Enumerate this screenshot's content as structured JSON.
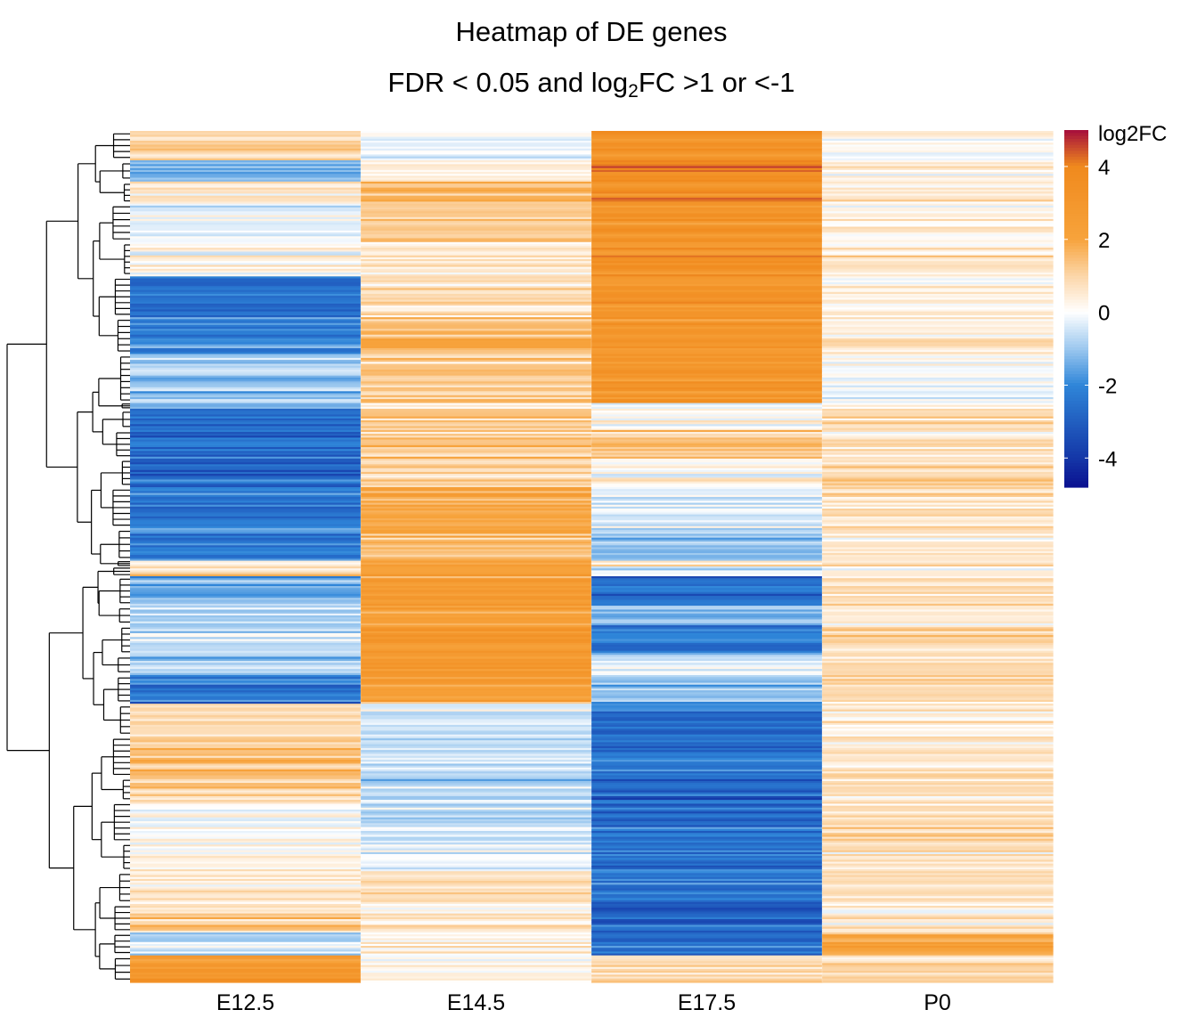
{
  "title_line1": "Heatmap of DE genes",
  "title_line2": {
    "pre": "FDR < 0.05 and log",
    "sub": "2",
    "post": "FC >1 or <-1"
  },
  "chart_data": {
    "type": "heatmap",
    "columns": [
      "E12.5",
      "E14.5",
      "E17.5",
      "P0"
    ],
    "row_dendrogram": true,
    "legend": {
      "title": "log2FC",
      "ticks": [
        4,
        2,
        0,
        -2,
        -4
      ],
      "range": [
        -4.8,
        5
      ],
      "colors": {
        "-4.8": "#0a1190",
        "-4": "#1437a8",
        "-2": "#2f86d9",
        "-1": "#9cc8ef",
        "0": "#ffffff",
        "1": "#fcd6a8",
        "2": "#f7a33c",
        "4": "#f08a1d",
        "5": "#a50d3c"
      },
      "position": "right"
    },
    "row_blocks": [
      {
        "rows_fraction": 0.036,
        "values": [
          1.0,
          -0.3,
          3.2,
          0.2
        ]
      },
      {
        "rows_fraction": 0.026,
        "values": [
          -1.4,
          0.4,
          3.8,
          0.3
        ]
      },
      {
        "rows_fraction": 0.027,
        "values": [
          0.5,
          1.6,
          3.3,
          0.4
        ]
      },
      {
        "rows_fraction": 0.047,
        "values": [
          -0.4,
          1.2,
          3.0,
          0.2
        ]
      },
      {
        "rows_fraction": 0.042,
        "values": [
          0.2,
          0.4,
          3.1,
          0.6
        ]
      },
      {
        "rows_fraction": 0.05,
        "values": [
          -2.6,
          0.8,
          3.1,
          0.3
        ]
      },
      {
        "rows_fraction": 0.045,
        "values": [
          -2.0,
          1.6,
          3.0,
          0.5
        ]
      },
      {
        "rows_fraction": 0.06,
        "values": [
          -1.2,
          1.0,
          2.8,
          -0.2
        ]
      },
      {
        "rows_fraction": 0.007,
        "values": [
          -0.8,
          0.6,
          0.4,
          0.5
        ]
      },
      {
        "rows_fraction": 0.026,
        "values": [
          -2.7,
          1.3,
          0.3,
          1.0
        ]
      },
      {
        "rows_fraction": 0.035,
        "values": [
          -2.6,
          1.2,
          1.4,
          0.6
        ]
      },
      {
        "rows_fraction": 0.035,
        "values": [
          -2.8,
          1.0,
          0.2,
          0.9
        ]
      },
      {
        "rows_fraction": 0.05,
        "values": [
          -2.5,
          1.9,
          -0.4,
          0.7
        ]
      },
      {
        "rows_fraction": 0.04,
        "values": [
          -2.2,
          1.6,
          -1.1,
          0.6
        ]
      },
      {
        "rows_fraction": 0.007,
        "values": [
          0.5,
          2.0,
          0.5,
          0.5
        ]
      },
      {
        "rows_fraction": 0.012,
        "values": [
          0.9,
          2.2,
          -0.5,
          0.4
        ]
      },
      {
        "rows_fraction": 0.036,
        "values": [
          -1.4,
          2.4,
          -2.6,
          0.7
        ]
      },
      {
        "rows_fraction": 0.024,
        "values": [
          -0.3,
          2.4,
          -0.8,
          0.6
        ]
      },
      {
        "rows_fraction": 0.036,
        "values": [
          -0.6,
          2.5,
          -2.3,
          0.8
        ]
      },
      {
        "rows_fraction": 0.025,
        "values": [
          -1.0,
          2.6,
          -0.3,
          0.7
        ]
      },
      {
        "rows_fraction": 0.035,
        "values": [
          -2.4,
          2.2,
          -1.3,
          0.8
        ]
      },
      {
        "rows_fraction": 0.04,
        "values": [
          0.9,
          -0.3,
          -2.3,
          0.5
        ]
      },
      {
        "rows_fraction": 0.05,
        "values": [
          1.3,
          -0.6,
          -2.5,
          0.6
        ]
      },
      {
        "rows_fraction": 0.03,
        "values": [
          1.0,
          -0.8,
          -2.9,
          0.7
        ]
      },
      {
        "rows_fraction": 0.05,
        "values": [
          0.1,
          -0.6,
          -2.6,
          0.9
        ]
      },
      {
        "rows_fraction": 0.035,
        "values": [
          0.2,
          -0.3,
          -2.7,
          0.6
        ]
      },
      {
        "rows_fraction": 0.04,
        "values": [
          0.4,
          0.8,
          -2.5,
          0.6
        ]
      },
      {
        "rows_fraction": 0.035,
        "values": [
          1.1,
          0.5,
          -2.8,
          0.5
        ]
      },
      {
        "rows_fraction": 0.028,
        "values": [
          -0.5,
          0.4,
          -2.5,
          2.0
        ]
      },
      {
        "rows_fraction": 0.033,
        "values": [
          2.7,
          0.1,
          0.8,
          0.9
        ]
      }
    ]
  }
}
